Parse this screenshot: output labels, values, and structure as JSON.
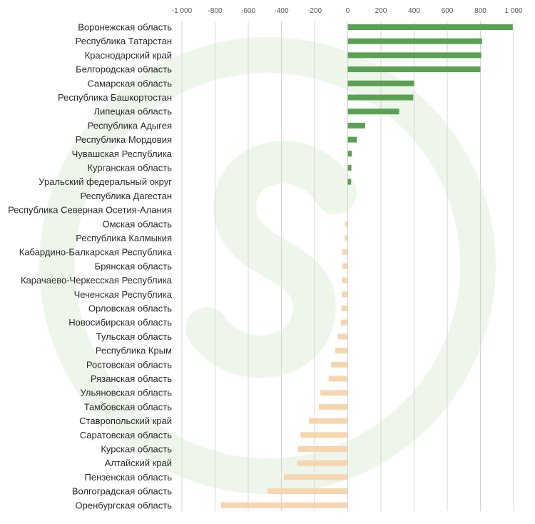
{
  "chart_data": {
    "type": "bar",
    "orientation": "horizontal",
    "title": "",
    "xlabel": "",
    "ylabel": "",
    "xlim": [
      -1000,
      1000
    ],
    "grid": true,
    "legend": "none",
    "tick_values": [
      -1000,
      -800,
      -600,
      -400,
      -200,
      0,
      200,
      400,
      600,
      800,
      1000
    ],
    "tick_labels": [
      "-1 000",
      "-800",
      "-600",
      "-400",
      "-200",
      "0",
      "200",
      "400",
      "600",
      "800",
      "1 000"
    ],
    "colors": {
      "positive": "#5aa153",
      "negative": "#f6d6b1",
      "grid": "#d4d4d4",
      "watermark": "#eef6ec"
    },
    "categories": [
      "Воронежская область",
      "Республика Татарстан",
      "Краснодарский край",
      "Белгородская область",
      "Самарская область",
      "Республика Башкортостан",
      "Липецкая область",
      "Республика Адыгея",
      "Республика Мордовия",
      "Чувашская Республика",
      "Курганская область",
      "Уральский федеральный округ",
      "Республика Дагестан",
      "Республика Северная Осетия-Алания",
      "Омская область",
      "Республика Калмыкия",
      "Кабардино-Балкарская Республика",
      "Брянская область",
      "Карачаево-Черкесская Республика",
      "Чеченская Республика",
      "Орловская область",
      "Новосибирская область",
      "Тульская область",
      "Республика Крым",
      "Ростовская область",
      "Рязанская область",
      "Ульяновская область",
      "Тамбовская область",
      "Ставропольский край",
      "Саратовская область",
      "Курская область",
      "Алтайский край",
      "Пензенская область",
      "Волгоградская область",
      "Оренбургская область"
    ],
    "values": [
      995,
      810,
      805,
      800,
      400,
      395,
      310,
      105,
      55,
      25,
      22,
      20,
      0,
      -5,
      -15,
      -18,
      -32,
      -32,
      -35,
      -35,
      -38,
      -42,
      -60,
      -75,
      -100,
      -115,
      -165,
      -175,
      -235,
      -285,
      -300,
      -305,
      -385,
      -485,
      -765
    ]
  }
}
